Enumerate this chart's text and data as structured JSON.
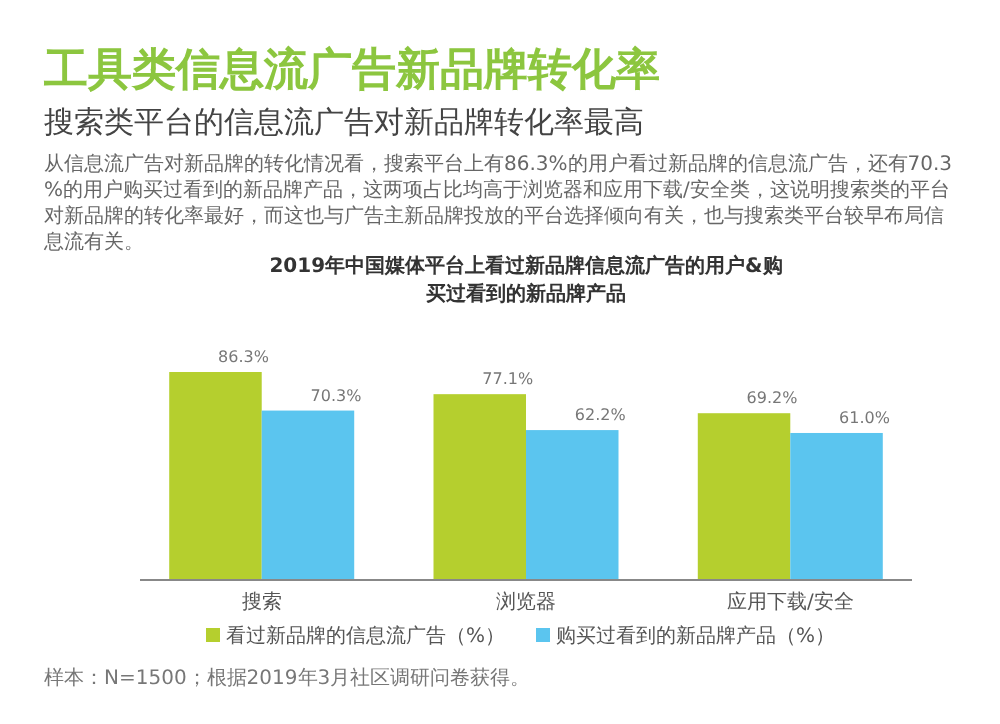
{
  "chart_data": {
    "type": "bar",
    "title": "2019年中国媒体平台上看过新品牌信息流广告的用户&购买过看到的新品牌产品",
    "categories": [
      "搜索",
      "浏览器",
      "应用下载/安全"
    ],
    "series": [
      {
        "name": "看过新品牌的信息流广告（%）",
        "color": "#b5cf2e",
        "values": [
          86.3,
          77.1,
          69.2
        ],
        "value_labels": [
          "86.3%",
          "77.1%",
          "69.2%"
        ]
      },
      {
        "name": "购买过看到的新品牌产品（%）",
        "color": "#5bc5ef",
        "values": [
          70.3,
          62.2,
          61.0
        ],
        "value_labels": [
          "70.3%",
          "62.2%",
          "61.0%"
        ]
      }
    ],
    "legend": "bottom",
    "annotations": [
      "工具类信息流广告新品牌转化率",
      "搜索类平台的信息流广告对新品牌转化率最高",
      "从信息流广告对新品牌的转化情况看，搜索平台上有86.3%的用户看过新品牌的信息流广告，还有70.3%的用户购买过看到的新品牌产品，这两项占比均高于浏览器和应用下载/安全类，这说明搜索类的平台对新品牌的转化率最好，而这也与广告主新品牌投放的平台选择倾向有关，也与搜索类平台较早布局信息流有关。",
      "样本：N=1500；根据2019年3月社区调研问卷获得。"
    ]
  }
}
